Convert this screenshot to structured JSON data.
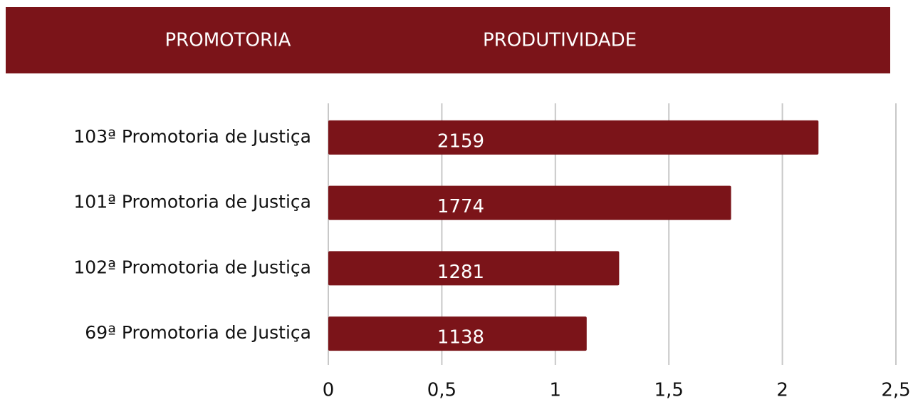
{
  "chart_data": {
    "type": "hbar",
    "column_headers": [
      "PROMOTORIA",
      "PRODUTIVIDADE"
    ],
    "categories": [
      "103ª Promotoria de Justiça",
      "101ª Promotoria de Justiça",
      "102ª Promotoria de Justiça",
      "69ª Promotoria de Justiça"
    ],
    "values": [
      2.159,
      1.774,
      1.281,
      1.138
    ],
    "value_labels": [
      "2159",
      "1774",
      "1281",
      "1138"
    ],
    "color": "#7b1419",
    "xlim": [
      0,
      2.5
    ],
    "xticks": [
      0,
      {
        "value": 0.5,
        "label": "0,5"
      },
      1,
      {
        "value": 1.5,
        "label": "1,5"
      },
      2,
      {
        "value": 2.5,
        "label": "2,5"
      }
    ],
    "grid": true
  }
}
